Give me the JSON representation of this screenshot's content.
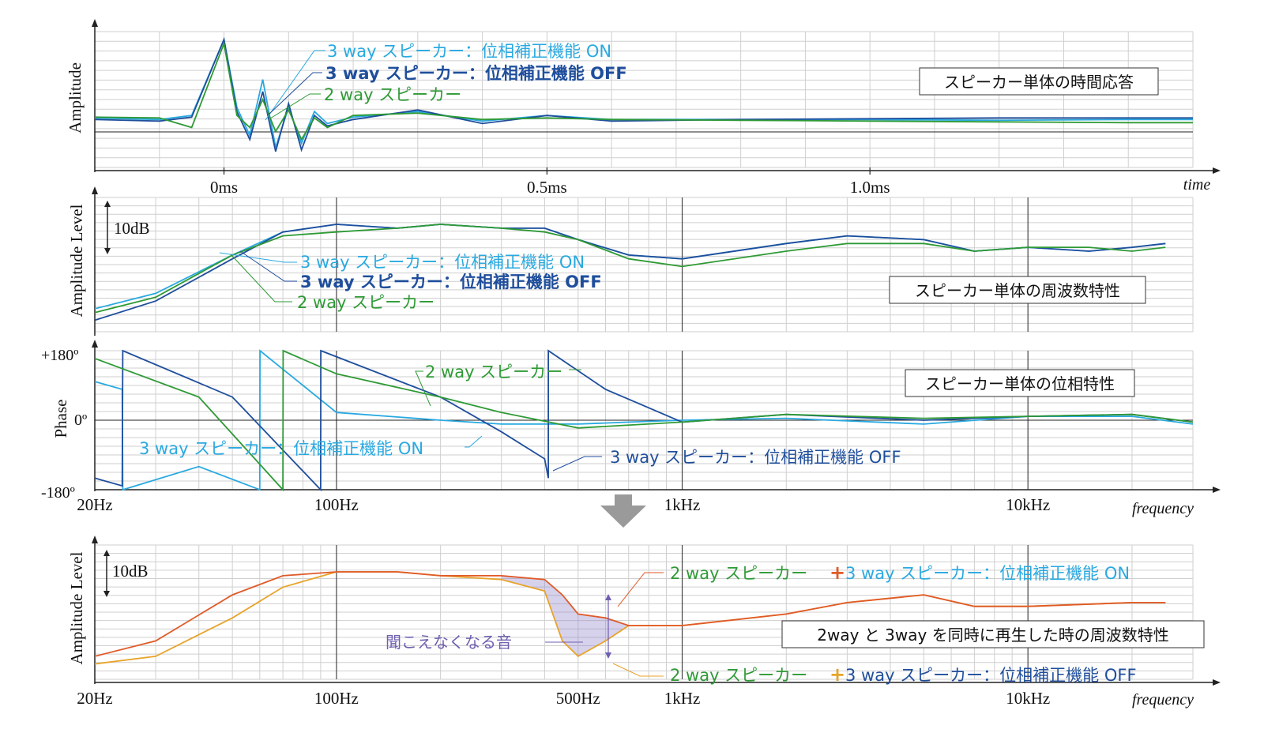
{
  "colors": {
    "three_way_on": "#29a9e0",
    "three_way_off": "#1f4e9c",
    "two_way": "#2e9a35",
    "sum_on": "#e05a28",
    "sum_off": "#e8a32a",
    "plus_on": "#e05a28",
    "plus_off": "#e8a32a",
    "lost_region": "#8c7ec9",
    "lost_label": "#6f5fb0",
    "grid_major": "#444444",
    "grid_minor": "#cfcfcf",
    "arrow_gray": "#9a9a9a"
  },
  "chart_data": [
    {
      "type": "line",
      "title": "スピーカー単体の時間応答",
      "ylabel": "Amplitude",
      "xlabel": "time",
      "x_ticks": [
        {
          "value": 0,
          "label": "0ms"
        },
        {
          "value": 0.5,
          "label": "0.5ms"
        },
        {
          "value": 1.0,
          "label": "1.0ms"
        }
      ],
      "xlim": [
        -0.2,
        1.5
      ],
      "ylim": [
        -0.6,
        1.1
      ],
      "series": [
        {
          "name": "3 way スピーカー：位相補正機能 ON",
          "color_key": "three_way_on",
          "x": [
            -0.2,
            -0.1,
            -0.05,
            0,
            0.02,
            0.04,
            0.06,
            0.08,
            0.1,
            0.12,
            0.14,
            0.16,
            0.2,
            0.3,
            0.4,
            0.5,
            0.6,
            0.8,
            1.0,
            1.2,
            1.4,
            1.5
          ],
          "y": [
            0.02,
            0.0,
            0.05,
            1.0,
            0.15,
            -0.2,
            0.5,
            -0.35,
            0.15,
            -0.3,
            0.1,
            -0.05,
            0.03,
            0.1,
            -0.02,
            0.05,
            0.0,
            0.0,
            0.0,
            -0.01,
            0.0,
            0.0
          ]
        },
        {
          "name": "3 way スピーカー：位相補正機能 OFF",
          "color_key": "three_way_off",
          "x": [
            -0.2,
            -0.1,
            -0.05,
            0,
            0.02,
            0.04,
            0.06,
            0.08,
            0.1,
            0.12,
            0.14,
            0.16,
            0.2,
            0.3,
            0.4,
            0.5,
            0.6,
            0.8,
            1.0,
            1.2,
            1.4,
            1.5
          ],
          "y": [
            0.0,
            -0.02,
            0.03,
            1.0,
            0.1,
            -0.25,
            0.35,
            -0.4,
            0.2,
            -0.38,
            0.05,
            -0.08,
            0.0,
            0.12,
            -0.05,
            0.05,
            -0.02,
            0.0,
            0.01,
            0.02,
            0.02,
            0.02
          ]
        },
        {
          "name": "2 way スピーカー",
          "color_key": "two_way",
          "x": [
            -0.2,
            -0.1,
            -0.05,
            0,
            0.02,
            0.04,
            0.06,
            0.08,
            0.1,
            0.12,
            0.14,
            0.16,
            0.2,
            0.3,
            0.4,
            0.5,
            0.6,
            0.8,
            1.0,
            1.2,
            1.4,
            1.5
          ],
          "y": [
            0.03,
            0.02,
            -0.1,
            0.95,
            0.05,
            -0.1,
            0.25,
            -0.15,
            0.12,
            -0.25,
            0.02,
            -0.1,
            0.05,
            0.08,
            0.0,
            0.02,
            0.0,
            -0.01,
            -0.02,
            -0.03,
            -0.04,
            -0.04
          ]
        }
      ]
    },
    {
      "type": "line",
      "title": "スピーカー単体の周波数特性",
      "ylabel": "Amplitude Level",
      "scale_label": "10dB",
      "xscale": "log",
      "xlim": [
        20,
        30000
      ],
      "ylim": [
        -30,
        5
      ],
      "series": [
        {
          "name": "3 way スピーカー：位相補正機能 ON",
          "color_key": "three_way_on",
          "x": [
            20,
            30,
            50,
            70,
            100,
            150,
            200,
            300,
            400,
            500,
            700,
            1000,
            2000,
            3000,
            5000,
            7000,
            10000,
            15000,
            20000,
            25000
          ],
          "y": [
            -24,
            -20,
            -10,
            -4,
            -2,
            -3,
            -2,
            -3,
            -3,
            -6,
            -10,
            -11,
            -7,
            -5,
            -6,
            -9,
            -8,
            -9,
            -8,
            -7
          ]
        },
        {
          "name": "3 way スピーカー：位相補正機能 OFF",
          "color_key": "three_way_off",
          "x": [
            20,
            30,
            50,
            70,
            100,
            150,
            200,
            300,
            400,
            500,
            700,
            1000,
            2000,
            3000,
            5000,
            7000,
            10000,
            15000,
            20000,
            25000
          ],
          "y": [
            -27,
            -22,
            -11,
            -4,
            -2,
            -3,
            -2,
            -3,
            -3,
            -6,
            -10,
            -11,
            -7,
            -5,
            -6,
            -9,
            -8,
            -9,
            -8,
            -7
          ]
        },
        {
          "name": "2 way スピーカー",
          "color_key": "two_way",
          "x": [
            20,
            30,
            50,
            70,
            100,
            150,
            200,
            300,
            400,
            500,
            700,
            1000,
            2000,
            3000,
            5000,
            7000,
            10000,
            15000,
            20000,
            25000
          ],
          "y": [
            -25,
            -21,
            -10,
            -5,
            -4,
            -3,
            -2,
            -3,
            -4,
            -6,
            -11,
            -13,
            -9,
            -7,
            -7,
            -9,
            -8,
            -8,
            -9,
            -8
          ]
        }
      ]
    },
    {
      "type": "line",
      "title": "スピーカー単体の位相特性",
      "ylabel": "Phase",
      "y_tick_labels": [
        "+180º",
        "0º",
        "-180º"
      ],
      "xscale": "log",
      "x_ticks": [
        {
          "value": 20,
          "label": "20Hz"
        },
        {
          "value": 100,
          "label": "100Hz"
        },
        {
          "value": 1000,
          "label": "1kHz"
        },
        {
          "value": 10000,
          "label": "10kHz"
        }
      ],
      "xlabel": "frequency",
      "xlim": [
        20,
        30000
      ],
      "ylim": [
        -180,
        180
      ],
      "series": [
        {
          "name": "3 way スピーカー：位相補正機能 ON",
          "color_key": "three_way_on",
          "x": [
            20,
            24,
            24.1,
            40,
            60,
            60.1,
            100,
            200,
            300,
            500,
            700,
            1000,
            2000,
            5000,
            10000,
            20000,
            30000
          ],
          "y": [
            100,
            80,
            -180,
            -120,
            -180,
            180,
            20,
            0,
            -10,
            -10,
            -5,
            0,
            5,
            -10,
            10,
            10,
            -10
          ]
        },
        {
          "name": "3 way スピーカー：位相補正機能 OFF",
          "color_key": "three_way_off",
          "x": [
            20,
            24,
            24.1,
            50,
            90,
            90.1,
            200,
            300,
            400,
            410,
            410.1,
            600,
            1000,
            2000,
            5000,
            10000,
            20000,
            30000
          ],
          "y": [
            -150,
            -170,
            180,
            60,
            -180,
            180,
            60,
            -30,
            -100,
            -150,
            180,
            80,
            -5,
            15,
            0,
            10,
            15,
            -5
          ]
        },
        {
          "name": "2 way スピーカー",
          "color_key": "two_way",
          "x": [
            20,
            40,
            70,
            70.1,
            100,
            200,
            300,
            500,
            1000,
            2000,
            5000,
            10000,
            20000,
            30000
          ],
          "y": [
            160,
            60,
            -180,
            180,
            120,
            60,
            20,
            -20,
            -5,
            15,
            5,
            10,
            15,
            -5
          ]
        }
      ]
    },
    {
      "type": "line",
      "title": "2way と 3way を同時に再生した時の周波数特性",
      "ylabel": "Amplitude Level",
      "scale_label": "10dB",
      "xscale": "log",
      "x_ticks": [
        {
          "value": 20,
          "label": "20Hz"
        },
        {
          "value": 100,
          "label": "100Hz"
        },
        {
          "value": 500,
          "label": "500Hz"
        },
        {
          "value": 1000,
          "label": "1kHz"
        },
        {
          "value": 10000,
          "label": "10kHz"
        }
      ],
      "xlabel": "frequency",
      "xlim": [
        20,
        30000
      ],
      "ylim": [
        -30,
        5
      ],
      "series": [
        {
          "name": "2 way スピーカー + 3 way スピーカー：位相補正機能 ON",
          "color_key": "sum_on",
          "x": [
            20,
            30,
            50,
            70,
            100,
            150,
            200,
            300,
            400,
            450,
            500,
            600,
            700,
            1000,
            2000,
            3000,
            5000,
            7000,
            10000,
            20000,
            25000
          ],
          "y": [
            -24,
            -20,
            -8,
            -3,
            -2,
            -2,
            -3,
            -3,
            -4,
            -8,
            -13,
            -14,
            -16,
            -16,
            -13,
            -10,
            -8,
            -11,
            -11,
            -10,
            -10
          ]
        },
        {
          "name": "2 way スピーカー + 3 way スピーカー：位相補正機能 OFF",
          "color_key": "sum_off",
          "x": [
            20,
            30,
            50,
            70,
            100,
            150,
            200,
            300,
            400,
            450,
            500,
            600,
            700,
            1000,
            2000,
            3000,
            5000,
            7000,
            10000,
            20000,
            25000
          ],
          "y": [
            -26,
            -24,
            -14,
            -6,
            -2,
            -2,
            -3,
            -4,
            -7,
            -20,
            -24,
            -20,
            -16,
            -16,
            -13,
            -10,
            -8,
            -11,
            -11,
            -10,
            -10
          ]
        }
      ]
    }
  ],
  "annotations": {
    "p1": {
      "on": "3 way スピーカー：位相補正機能 ON",
      "off": "3 way スピーカー：位相補正機能 OFF",
      "two": "2 way スピーカー"
    },
    "p2": {
      "on": "3 way スピーカー：位相補正機能 ON",
      "off": "3 way スピーカー：位相補正機能 OFF",
      "two": "2 way スピーカー"
    },
    "p3": {
      "two": "2 way スピーカー",
      "on": "3 way スピーカー：位相補正機能 ON",
      "off": "3 way スピーカー：位相補正機能 OFF"
    },
    "p4": {
      "two_a": "2 way スピーカー",
      "plus_a": "+",
      "three_on": "3 way スピーカー：位相補正機能 ON",
      "two_b": "2 way スピーカー",
      "plus_b": "+",
      "three_off": "3 way スピーカー：位相補正機能 OFF",
      "lost": "聞こえなくなる音"
    }
  }
}
